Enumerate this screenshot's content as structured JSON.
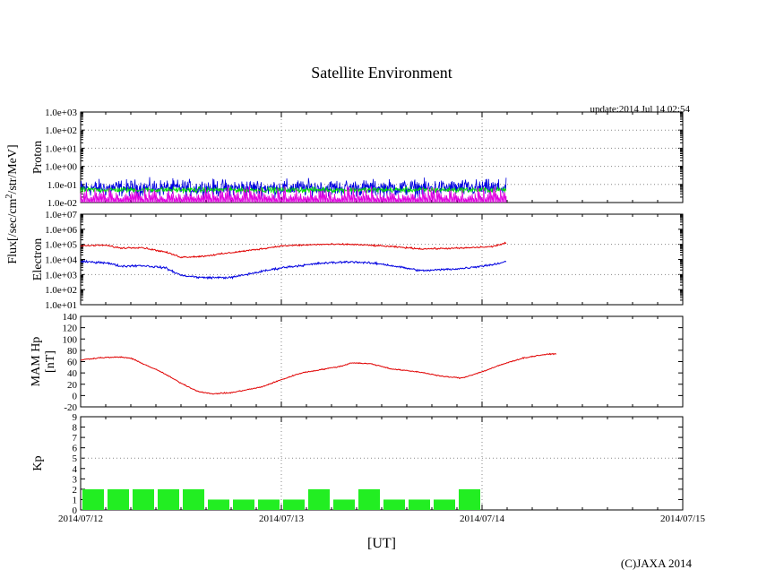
{
  "chart_data": {
    "type": "line",
    "title": "Satellite Environment",
    "update_label": "update:2014 Jul 14 02:54",
    "xlabel": "[UT]",
    "copyright": "(C)JAXA 2014",
    "x_ticks": [
      "2014/07/12",
      "2014/07/13",
      "2014/07/14",
      "2014/07/15"
    ],
    "x_range_days": [
      0,
      3
    ],
    "colors": {
      "red": "#e00000",
      "blue": "#0000e0",
      "green": "#00e000",
      "magenta": "#e000e0",
      "kp": "#22ee22"
    },
    "panels": [
      {
        "id": "proton",
        "ylabel_lines": [
          "Proton"
        ],
        "scale": "log",
        "ylim_exp": [
          -2,
          3
        ],
        "ytick_labels": [
          "1.0e-02",
          "1.0e-01",
          "1.0e+00",
          "1.0e+01",
          "1.0e+02",
          "1.0e+03"
        ],
        "series": [
          {
            "color": "blue",
            "style": "noise",
            "level_exp": -1.2,
            "spread": 0.45
          },
          {
            "color": "green",
            "style": "noise",
            "level_exp": -1.3,
            "spread": 0.15
          },
          {
            "color": "magenta",
            "style": "spikes",
            "level_exp": -1.8,
            "spread": 0.3
          }
        ]
      },
      {
        "id": "electron",
        "ylabel_lines": [
          "Electron"
        ],
        "scale": "log",
        "ylim_exp": [
          1,
          7
        ],
        "ytick_labels": [
          "1.0e+01",
          "1.0e+02",
          "1.0e+03",
          "1.0e+04",
          "1.0e+05",
          "1.0e+06",
          "1.0e+07"
        ],
        "series": [
          {
            "color": "red",
            "noise": 0.05,
            "points": [
              [
                0,
                4.9
              ],
              [
                0.12,
                4.95
              ],
              [
                0.2,
                4.75
              ],
              [
                0.3,
                4.8
              ],
              [
                0.42,
                4.5
              ],
              [
                0.5,
                4.15
              ],
              [
                0.6,
                4.2
              ],
              [
                0.75,
                4.45
              ],
              [
                0.9,
                4.7
              ],
              [
                1.0,
                4.9
              ],
              [
                1.2,
                5.0
              ],
              [
                1.35,
                5.0
              ],
              [
                1.5,
                4.9
              ],
              [
                1.7,
                4.7
              ],
              [
                1.9,
                4.75
              ],
              [
                2.05,
                4.85
              ],
              [
                2.12,
                5.1
              ]
            ]
          },
          {
            "color": "blue",
            "noise": 0.07,
            "points": [
              [
                0,
                3.85
              ],
              [
                0.12,
                3.8
              ],
              [
                0.2,
                3.55
              ],
              [
                0.3,
                3.6
              ],
              [
                0.42,
                3.45
              ],
              [
                0.5,
                2.95
              ],
              [
                0.6,
                2.8
              ],
              [
                0.75,
                2.8
              ],
              [
                0.9,
                3.2
              ],
              [
                1.0,
                3.45
              ],
              [
                1.2,
                3.75
              ],
              [
                1.35,
                3.85
              ],
              [
                1.5,
                3.7
              ],
              [
                1.7,
                3.25
              ],
              [
                1.9,
                3.4
              ],
              [
                2.05,
                3.65
              ],
              [
                2.12,
                3.85
              ]
            ]
          }
        ]
      },
      {
        "id": "mam",
        "ylabel_lines": [
          "MAM Hp",
          "[nT]"
        ],
        "scale": "linear",
        "ylim": [
          -20,
          140
        ],
        "yticks": [
          -20,
          0,
          20,
          40,
          60,
          80,
          100,
          120,
          140
        ],
        "series": [
          {
            "color": "red",
            "noise": 0.9,
            "points": [
              [
                0,
                63
              ],
              [
                0.1,
                67
              ],
              [
                0.2,
                68
              ],
              [
                0.25,
                66
              ],
              [
                0.3,
                58
              ],
              [
                0.4,
                42
              ],
              [
                0.5,
                22
              ],
              [
                0.58,
                8
              ],
              [
                0.65,
                3
              ],
              [
                0.75,
                5
              ],
              [
                0.9,
                15
              ],
              [
                1.0,
                28
              ],
              [
                1.1,
                40
              ],
              [
                1.2,
                46
              ],
              [
                1.3,
                52
              ],
              [
                1.35,
                58
              ],
              [
                1.45,
                56
              ],
              [
                1.55,
                47
              ],
              [
                1.7,
                41
              ],
              [
                1.8,
                34
              ],
              [
                1.9,
                31
              ],
              [
                2.0,
                42
              ],
              [
                2.1,
                55
              ],
              [
                2.2,
                66
              ],
              [
                2.3,
                72
              ],
              [
                2.37,
                74
              ]
            ]
          }
        ]
      },
      {
        "id": "kp",
        "ylabel_lines": [
          "Kp"
        ],
        "scale": "linear",
        "ylim": [
          0,
          9
        ],
        "yticks": [
          0,
          1,
          2,
          3,
          4,
          5,
          6,
          7,
          8,
          9
        ],
        "bars": [
          2,
          2,
          2,
          2,
          2,
          1,
          1,
          1,
          1,
          2,
          1,
          2,
          1,
          1,
          1,
          2
        ]
      }
    ],
    "shared_ylabel": [
      "Flux[/sec/cm",
      "2",
      "/str/MeV]"
    ]
  }
}
